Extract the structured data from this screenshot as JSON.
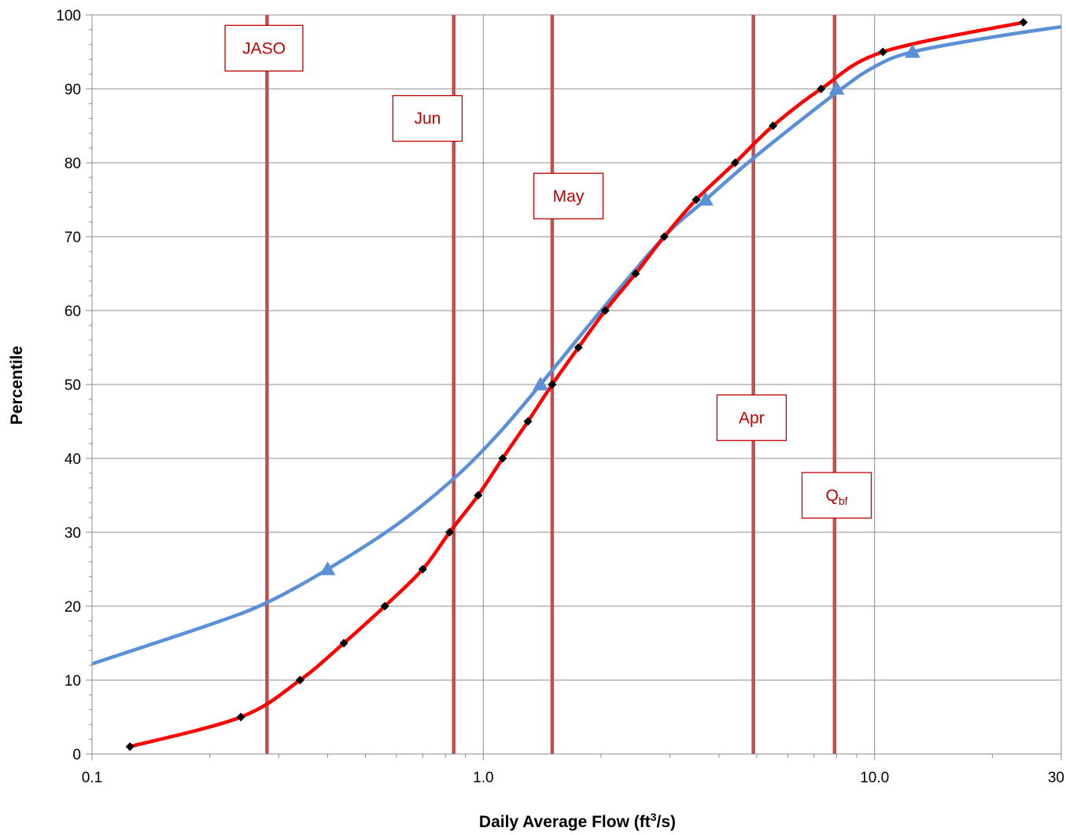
{
  "chart_data": {
    "type": "line",
    "title": "",
    "xlabel": "Daily Average Flow (ft",
    "xlabel_sup": "3",
    "xlabel_end": "/s)",
    "ylabel": "Percentile",
    "xscale": "log",
    "xlim": [
      0.1,
      30
    ],
    "ylim": [
      0,
      100
    ],
    "x_ticks": [
      {
        "value": 0.1,
        "label": "0.1"
      },
      {
        "value": 1.0,
        "label": "1.0"
      },
      {
        "value": 10.0,
        "label": "10.0"
      },
      {
        "value": 30,
        "label": "30"
      }
    ],
    "y_ticks": [
      0,
      10,
      20,
      30,
      40,
      50,
      60,
      70,
      80,
      90,
      100
    ],
    "grid": true,
    "series": [
      {
        "color": "#5b8fd6",
        "marker": "triangle",
        "curve": [
          {
            "x": 0.1,
            "p": 12.2
          },
          {
            "x": 0.2,
            "p": 17.5
          },
          {
            "x": 0.28,
            "p": 20.5
          },
          {
            "x": 0.4,
            "p": 25
          },
          {
            "x": 0.6,
            "p": 31
          },
          {
            "x": 0.85,
            "p": 37.5
          },
          {
            "x": 1.1,
            "p": 43.5
          },
          {
            "x": 1.4,
            "p": 50
          },
          {
            "x": 2.0,
            "p": 60
          },
          {
            "x": 2.9,
            "p": 70
          },
          {
            "x": 3.7,
            "p": 75
          },
          {
            "x": 5.0,
            "p": 81
          },
          {
            "x": 8.0,
            "p": 89.5
          },
          {
            "x": 10.0,
            "p": 93
          },
          {
            "x": 12.5,
            "p": 95
          },
          {
            "x": 20.0,
            "p": 97
          },
          {
            "x": 30,
            "p": 98.4
          }
        ],
        "markers": [
          {
            "x": 0.4,
            "p": 25
          },
          {
            "x": 1.4,
            "p": 50
          },
          {
            "x": 3.7,
            "p": 75
          },
          {
            "x": 8.0,
            "p": 90
          },
          {
            "x": 12.5,
            "p": 95
          }
        ]
      },
      {
        "color": "#ff0000",
        "marker": "diamond",
        "marker_color": "#000000",
        "points": [
          {
            "x": 0.125,
            "p": 1
          },
          {
            "x": 0.24,
            "p": 5
          },
          {
            "x": 0.34,
            "p": 10
          },
          {
            "x": 0.44,
            "p": 15
          },
          {
            "x": 0.56,
            "p": 20
          },
          {
            "x": 0.7,
            "p": 25
          },
          {
            "x": 0.82,
            "p": 30
          },
          {
            "x": 0.97,
            "p": 35
          },
          {
            "x": 1.12,
            "p": 40
          },
          {
            "x": 1.3,
            "p": 45
          },
          {
            "x": 1.5,
            "p": 50
          },
          {
            "x": 1.75,
            "p": 55
          },
          {
            "x": 2.05,
            "p": 60
          },
          {
            "x": 2.45,
            "p": 65
          },
          {
            "x": 2.9,
            "p": 70
          },
          {
            "x": 3.5,
            "p": 75
          },
          {
            "x": 4.4,
            "p": 80
          },
          {
            "x": 5.5,
            "p": 85
          },
          {
            "x": 7.3,
            "p": 90
          },
          {
            "x": 10.5,
            "p": 95
          },
          {
            "x": 24,
            "p": 99
          }
        ]
      }
    ],
    "vertical_lines": [
      {
        "x": 0.28,
        "color": "#c0504d"
      },
      {
        "x": 0.84,
        "color": "#c0504d"
      },
      {
        "x": 1.5,
        "color": "#c0504d"
      },
      {
        "x": 4.9,
        "color": "#c0504d"
      },
      {
        "x": 7.9,
        "color": "#c0504d"
      }
    ],
    "annotations": [
      {
        "text": "JASO",
        "sub": "",
        "x": 0.275,
        "p": 95.5
      },
      {
        "text": "Jun",
        "sub": "",
        "x": 0.72,
        "p": 86
      },
      {
        "text": "May",
        "sub": "",
        "x": 1.65,
        "p": 75.5
      },
      {
        "text": "Apr",
        "sub": "",
        "x": 4.85,
        "p": 45.5
      },
      {
        "text": "Q",
        "sub": "bf",
        "x": 8.0,
        "p": 35
      }
    ]
  }
}
